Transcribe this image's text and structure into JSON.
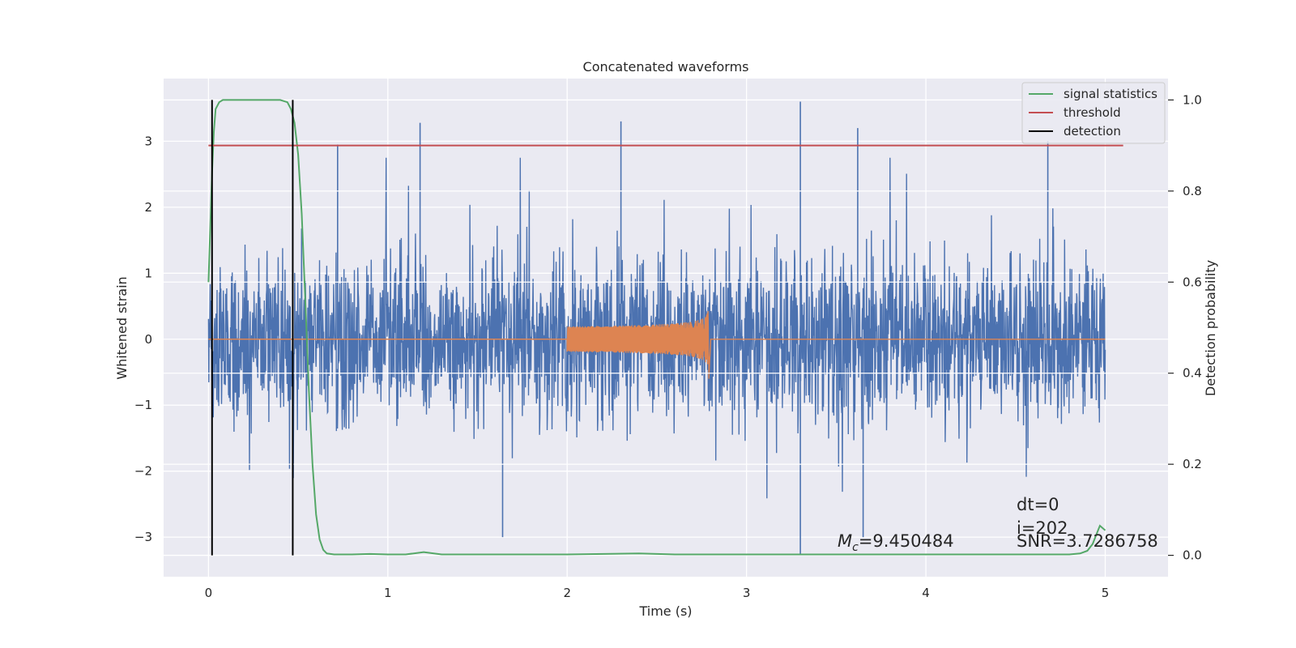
{
  "chart_data": {
    "type": "line",
    "title": "Concatenated waveforms",
    "xlabel": "Time (s)",
    "ylabel": "Whitened strain",
    "ylabel_right": "Detection probability",
    "xlim": [
      -0.25,
      5.35
    ],
    "ylim": [
      -3.6,
      3.95
    ],
    "ylim_right": [
      -0.047,
      1.047
    ],
    "x_ticks": [
      0,
      1,
      2,
      3,
      4,
      5
    ],
    "x_tick_labels": [
      "0",
      "1",
      "2",
      "3",
      "4",
      "5"
    ],
    "y_ticks": [
      -3,
      -2,
      -1,
      0,
      1,
      2,
      3
    ],
    "y_tick_labels": [
      "−3",
      "−2",
      "−1",
      "0",
      "1",
      "2",
      "3"
    ],
    "y_right_ticks": [
      0.0,
      0.2,
      0.4,
      0.6,
      0.8,
      1.0
    ],
    "y_right_tick_labels": [
      "0.0",
      "0.2",
      "0.4",
      "0.6",
      "0.8",
      "1.0"
    ],
    "grid": true,
    "legend_position": "top-right",
    "legend": [
      "signal statistics",
      "threshold",
      "detection"
    ],
    "colors": {
      "strain": "#4c72b0",
      "template": "#dd8452",
      "signal_statistics": "#55a868",
      "threshold": "#c44e52",
      "detection": "#000000",
      "background": "#eaeaf2"
    },
    "series": [
      {
        "name": "signal statistics",
        "axis": "right",
        "x": [
          0.0,
          0.01,
          0.02,
          0.03,
          0.04,
          0.06,
          0.08,
          0.12,
          0.2,
          0.3,
          0.4,
          0.44,
          0.46,
          0.48,
          0.5,
          0.52,
          0.54,
          0.56,
          0.58,
          0.6,
          0.62,
          0.64,
          0.66,
          0.7,
          0.8,
          0.9,
          1.0,
          1.1,
          1.2,
          1.3,
          1.5,
          2.0,
          2.4,
          2.6,
          3.0,
          3.5,
          4.0,
          4.5,
          4.8,
          4.86,
          4.9,
          4.93,
          4.95,
          4.97,
          5.0
        ],
        "y": [
          0.6,
          0.72,
          0.84,
          0.93,
          0.98,
          0.995,
          1.0,
          1.0,
          1.0,
          1.0,
          1.0,
          0.995,
          0.98,
          0.95,
          0.88,
          0.75,
          0.56,
          0.36,
          0.2,
          0.09,
          0.035,
          0.012,
          0.004,
          0.002,
          0.002,
          0.003,
          0.002,
          0.002,
          0.007,
          0.002,
          0.002,
          0.002,
          0.004,
          0.002,
          0.002,
          0.002,
          0.002,
          0.002,
          0.002,
          0.004,
          0.01,
          0.025,
          0.045,
          0.065,
          0.055
        ]
      },
      {
        "name": "threshold",
        "axis": "right",
        "x": [
          0.0,
          5.1
        ],
        "y": [
          0.9,
          0.9
        ]
      },
      {
        "name": "detection",
        "axis": "right",
        "x_lines": [
          0.02,
          0.47
        ],
        "y_range": [
          0.0,
          1.0
        ]
      }
    ],
    "strain_noise": {
      "x_range": [
        0.0,
        5.0
      ],
      "typical_amplitude": [
        -2.0,
        2.2
      ],
      "peak_spikes": [
        {
          "x": 0.72,
          "y": 2.95
        },
        {
          "x": 1.18,
          "y": 3.28
        },
        {
          "x": 2.3,
          "y": 3.3
        },
        {
          "x": 3.3,
          "y": 3.6
        },
        {
          "x": 3.3,
          "y": -3.25
        },
        {
          "x": 3.62,
          "y": 3.2
        },
        {
          "x": 4.68,
          "y": 3.0
        },
        {
          "x": 1.64,
          "y": -3.0
        },
        {
          "x": 3.65,
          "y": -3.0
        }
      ]
    },
    "template_chirp": {
      "x_range": [
        2.0,
        2.8
      ],
      "start_amplitude": 0.08,
      "peak_amplitude": 0.5,
      "peak_time": 2.79
    },
    "annotations": {
      "mc_symbol": "M",
      "mc_subscript": "c",
      "mc_value": "=9.450484",
      "dt": "dt=0",
      "i": "i=202",
      "snr": "SNR=3.7286758"
    }
  }
}
